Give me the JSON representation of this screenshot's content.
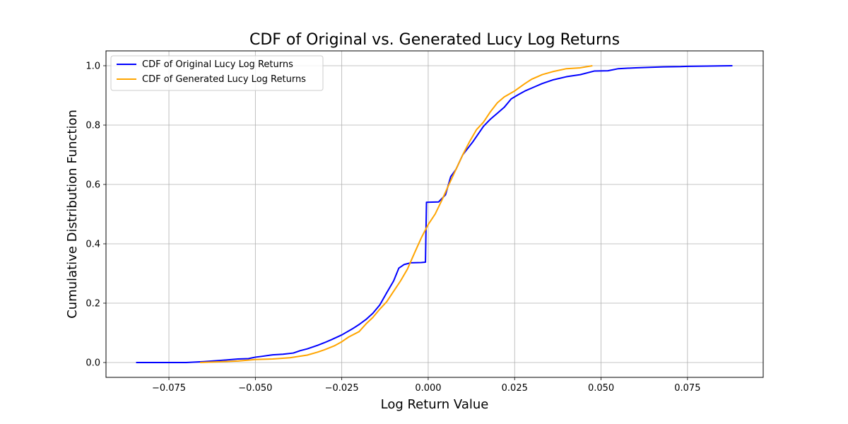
{
  "chart_data": {
    "type": "line",
    "title": "CDF of Original vs. Generated Lucy Log Returns",
    "xlabel": "Log Return Value",
    "ylabel": "Cumulative Distribution Function",
    "xlim": [
      -0.0932,
      0.0969
    ],
    "ylim": [
      -0.05,
      1.05
    ],
    "xticks": [
      -0.075,
      -0.05,
      -0.025,
      0.0,
      0.025,
      0.05,
      0.075
    ],
    "xtick_labels": [
      "−0.075",
      "−0.050",
      "−0.025",
      "0.000",
      "0.025",
      "0.050",
      "0.075"
    ],
    "yticks": [
      0.0,
      0.2,
      0.4,
      0.6,
      0.8,
      1.0
    ],
    "ytick_labels": [
      "0.0",
      "0.2",
      "0.4",
      "0.6",
      "0.8",
      "1.0"
    ],
    "grid": true,
    "legend_position": "upper left",
    "series": [
      {
        "name": "CDF of Original Lucy Log Returns",
        "color": "#0000ff",
        "points": [
          [
            -0.0845,
            0.0
          ],
          [
            -0.07,
            0.0
          ],
          [
            -0.065,
            0.003
          ],
          [
            -0.06,
            0.007
          ],
          [
            -0.055,
            0.012
          ],
          [
            -0.052,
            0.013
          ],
          [
            -0.05,
            0.018
          ],
          [
            -0.048,
            0.021
          ],
          [
            -0.045,
            0.026
          ],
          [
            -0.042,
            0.028
          ],
          [
            -0.039,
            0.032
          ],
          [
            -0.037,
            0.04
          ],
          [
            -0.035,
            0.046
          ],
          [
            -0.032,
            0.058
          ],
          [
            -0.03,
            0.067
          ],
          [
            -0.028,
            0.077
          ],
          [
            -0.025,
            0.093
          ],
          [
            -0.022,
            0.113
          ],
          [
            -0.02,
            0.128
          ],
          [
            -0.018,
            0.145
          ],
          [
            -0.016,
            0.166
          ],
          [
            -0.014,
            0.194
          ],
          [
            -0.012,
            0.235
          ],
          [
            -0.01,
            0.275
          ],
          [
            -0.0085,
            0.318
          ],
          [
            -0.007,
            0.33
          ],
          [
            -0.005,
            0.336
          ],
          [
            -0.002,
            0.337
          ],
          [
            -0.0008,
            0.338
          ],
          [
            -0.0005,
            0.54
          ],
          [
            0.003,
            0.541
          ],
          [
            0.005,
            0.565
          ],
          [
            0.0065,
            0.626
          ],
          [
            0.008,
            0.65
          ],
          [
            0.01,
            0.7
          ],
          [
            0.013,
            0.745
          ],
          [
            0.016,
            0.796
          ],
          [
            0.018,
            0.82
          ],
          [
            0.02,
            0.84
          ],
          [
            0.022,
            0.86
          ],
          [
            0.024,
            0.888
          ],
          [
            0.026,
            0.902
          ],
          [
            0.028,
            0.915
          ],
          [
            0.03,
            0.925
          ],
          [
            0.033,
            0.94
          ],
          [
            0.036,
            0.952
          ],
          [
            0.04,
            0.963
          ],
          [
            0.044,
            0.97
          ],
          [
            0.048,
            0.982
          ],
          [
            0.052,
            0.983
          ],
          [
            0.055,
            0.99
          ],
          [
            0.06,
            0.993
          ],
          [
            0.065,
            0.995
          ],
          [
            0.068,
            0.996
          ],
          [
            0.073,
            0.997
          ],
          [
            0.075,
            0.998
          ],
          [
            0.088,
            1.0
          ]
        ]
      },
      {
        "name": "CDF of Generated Lucy Log Returns",
        "color": "#ffa500",
        "points": [
          [
            -0.066,
            0.0
          ],
          [
            -0.055,
            0.005
          ],
          [
            -0.05,
            0.01
          ],
          [
            -0.045,
            0.012
          ],
          [
            -0.04,
            0.016
          ],
          [
            -0.035,
            0.025
          ],
          [
            -0.032,
            0.035
          ],
          [
            -0.03,
            0.043
          ],
          [
            -0.027,
            0.057
          ],
          [
            -0.025,
            0.07
          ],
          [
            -0.023,
            0.086
          ],
          [
            -0.02,
            0.104
          ],
          [
            -0.018,
            0.13
          ],
          [
            -0.016,
            0.152
          ],
          [
            -0.014,
            0.18
          ],
          [
            -0.012,
            0.205
          ],
          [
            -0.01,
            0.24
          ],
          [
            -0.008,
            0.275
          ],
          [
            -0.006,
            0.315
          ],
          [
            -0.004,
            0.368
          ],
          [
            -0.002,
            0.42
          ],
          [
            0.0,
            0.465
          ],
          [
            0.002,
            0.5
          ],
          [
            0.004,
            0.548
          ],
          [
            0.006,
            0.6
          ],
          [
            0.008,
            0.65
          ],
          [
            0.01,
            0.7
          ],
          [
            0.012,
            0.745
          ],
          [
            0.014,
            0.785
          ],
          [
            0.016,
            0.81
          ],
          [
            0.018,
            0.845
          ],
          [
            0.02,
            0.875
          ],
          [
            0.022,
            0.895
          ],
          [
            0.025,
            0.915
          ],
          [
            0.028,
            0.94
          ],
          [
            0.03,
            0.955
          ],
          [
            0.033,
            0.97
          ],
          [
            0.036,
            0.98
          ],
          [
            0.04,
            0.99
          ],
          [
            0.044,
            0.993
          ],
          [
            0.0475,
            1.0
          ]
        ]
      }
    ]
  }
}
